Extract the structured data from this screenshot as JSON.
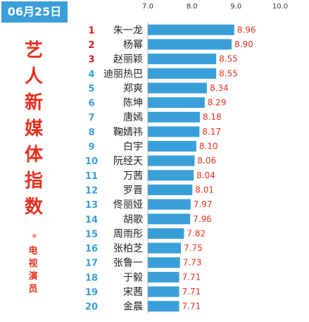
{
  "header": {
    "date": "06月25日",
    "title": "艺\n人\n新\n媒\n体\n指\n数",
    "star": "*",
    "subtitle": "电\n视\n演\n员"
  },
  "colors": {
    "date_bg": "#3a9fd8",
    "title_red": "#e8301f",
    "bar": "#3a9fd8",
    "rank_top3": "#d7191c",
    "rank_other": "#3a9fd8",
    "value_text": "#e8301f"
  },
  "chart_data": {
    "type": "bar",
    "orientation": "horizontal",
    "xlim": [
      7.0,
      10.0
    ],
    "x_ticks": [
      "7.0",
      "8.0",
      "9.0",
      "10.0"
    ],
    "grid": false,
    "ranks": [
      "1",
      "2",
      "3",
      "4",
      "5",
      "6",
      "7",
      "8",
      "9",
      "10",
      "11",
      "12",
      "13",
      "14",
      "15",
      "16",
      "17",
      "18",
      "19",
      "20"
    ],
    "categories": [
      "朱一龙",
      "杨幂",
      "赵丽颖",
      "迪丽热巴",
      "郑爽",
      "陈坤",
      "唐嫣",
      "鞠婧祎",
      "白宇",
      "阮经天",
      "万茜",
      "罗晋",
      "佟丽娅",
      "胡歌",
      "周雨彤",
      "张柏芝",
      "张鲁一",
      "于毅",
      "宋茜",
      "金晨"
    ],
    "values": [
      8.96,
      8.9,
      8.55,
      8.55,
      8.34,
      8.29,
      8.18,
      8.17,
      8.1,
      8.06,
      8.04,
      8.01,
      7.97,
      7.96,
      7.82,
      7.75,
      7.73,
      7.71,
      7.71,
      7.71
    ],
    "value_labels": [
      "8.96",
      "8.90",
      "8.55",
      "8.55",
      "8.34",
      "8.29",
      "8.18",
      "8.17",
      "8.10",
      "8.06",
      "8.04",
      "8.01",
      "7.97",
      "7.96",
      "7.82",
      "7.75",
      "7.73",
      "7.71",
      "7.71",
      "7.71"
    ]
  }
}
